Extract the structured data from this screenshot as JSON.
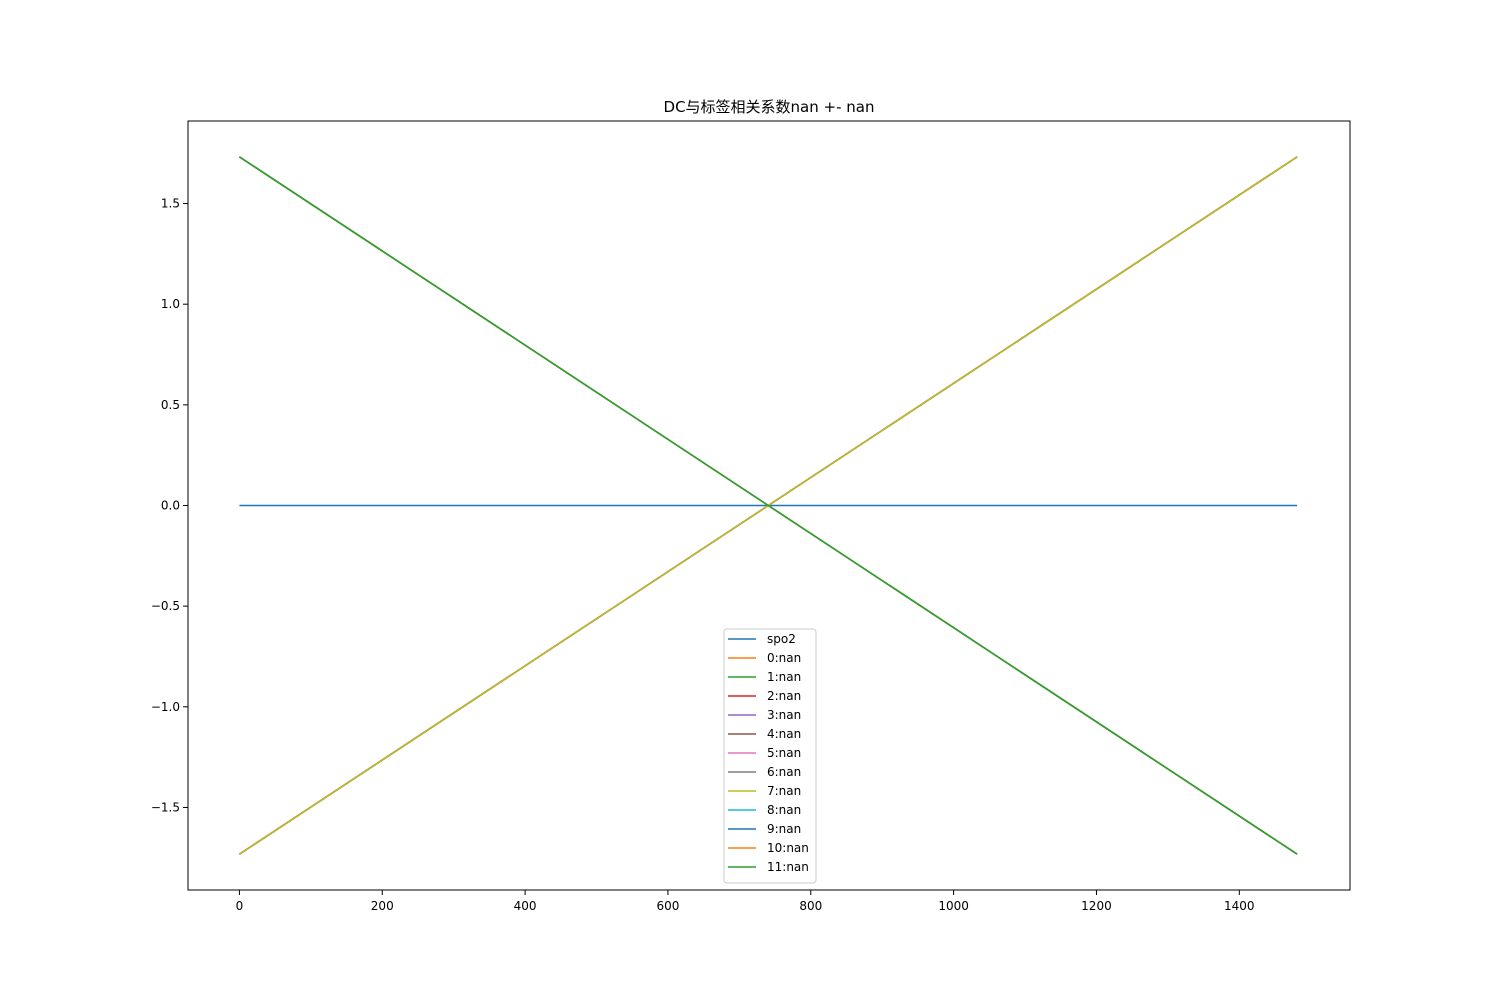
{
  "chart_data": {
    "type": "line",
    "title": "DC与标签相关系数nan +- nan",
    "xlabel": "",
    "ylabel": "",
    "xlim": [
      -72,
      1555
    ],
    "ylim": [
      -1.91,
      1.91
    ],
    "x_ticks": [
      0,
      200,
      400,
      600,
      800,
      1000,
      1200,
      1400
    ],
    "y_ticks": [
      1.5,
      1.0,
      0.5,
      0.0,
      -0.5,
      -1.0,
      -1.5
    ],
    "x_tick_labels": [
      "0",
      "200",
      "400",
      "600",
      "800",
      "1000",
      "1200",
      "1400"
    ],
    "y_tick_labels": [
      "1.5",
      "1.0",
      "0.5",
      "0.0",
      "−0.5",
      "−1.0",
      "−1.5"
    ],
    "grid": false,
    "legend_position": "lower-center",
    "series": [
      {
        "name": "spo2",
        "color": "#1f77b4",
        "x": [
          0,
          1481
        ],
        "y": [
          0,
          0
        ]
      },
      {
        "name": "0:nan",
        "color": "#ff7f0e",
        "x": [
          0,
          1481
        ],
        "y": [
          -1.732,
          1.732
        ]
      },
      {
        "name": "1:nan",
        "color": "#2ca02c",
        "x": [
          0,
          1481
        ],
        "y": [
          1.732,
          -1.732
        ]
      },
      {
        "name": "2:nan",
        "color": "#d62728",
        "x": [
          0,
          1481
        ],
        "y": [
          -1.732,
          1.732
        ]
      },
      {
        "name": "3:nan",
        "color": "#9467bd",
        "x": [
          0,
          1481
        ],
        "y": [
          -1.732,
          1.732
        ]
      },
      {
        "name": "4:nan",
        "color": "#8c564b",
        "x": [
          0,
          1481
        ],
        "y": [
          -1.732,
          1.732
        ]
      },
      {
        "name": "5:nan",
        "color": "#e377c2",
        "x": [
          0,
          1481
        ],
        "y": [
          -1.732,
          1.732
        ]
      },
      {
        "name": "6:nan",
        "color": "#7f7f7f",
        "x": [
          0,
          1481
        ],
        "y": [
          -1.732,
          1.732
        ]
      },
      {
        "name": "7:nan",
        "color": "#bcbd22",
        "x": [
          0,
          1481
        ],
        "y": [
          -1.732,
          1.732
        ]
      },
      {
        "name": "8:nan",
        "color": "#17becf",
        "x": [
          0,
          1481
        ],
        "y": [
          1.732,
          -1.732
        ]
      },
      {
        "name": "9:nan",
        "color": "#1f77b4",
        "x": [
          0,
          1481
        ],
        "y": [
          1.732,
          -1.732
        ]
      },
      {
        "name": "10:nan",
        "color": "#ff7f0e",
        "x": [
          0,
          1481
        ],
        "y": [
          1.732,
          -1.732
        ]
      },
      {
        "name": "11:nan",
        "color": "#2ca02c",
        "x": [
          0,
          1481
        ],
        "y": [
          1.732,
          -1.732
        ]
      }
    ]
  }
}
